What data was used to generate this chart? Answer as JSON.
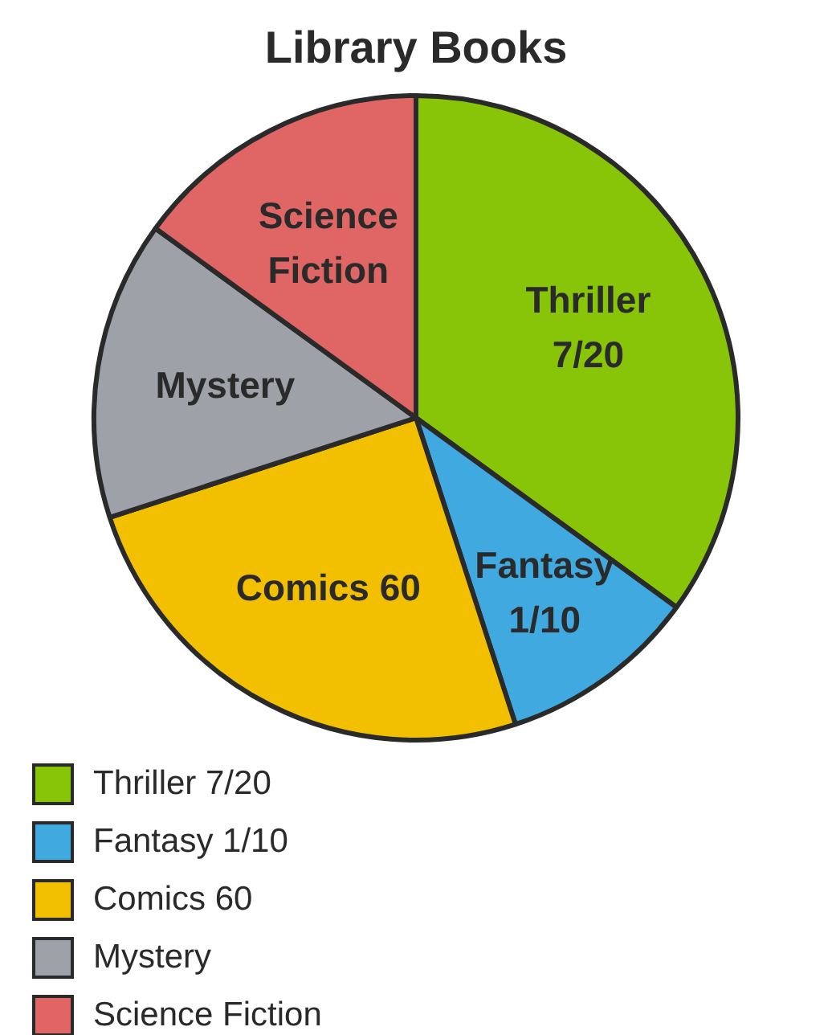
{
  "chart_data": {
    "type": "pie",
    "title": "Library Books",
    "categories": [
      "Thriller 7/20",
      "Fantasy 1/10",
      "Comics 60",
      "Mystery",
      "Science Fiction"
    ],
    "values": [
      35,
      10,
      25,
      15,
      15
    ],
    "colors": [
      "#88c408",
      "#3fa9e0",
      "#f2c000",
      "#9ea2a8",
      "#e06666"
    ],
    "legend": "bottom left"
  }
}
